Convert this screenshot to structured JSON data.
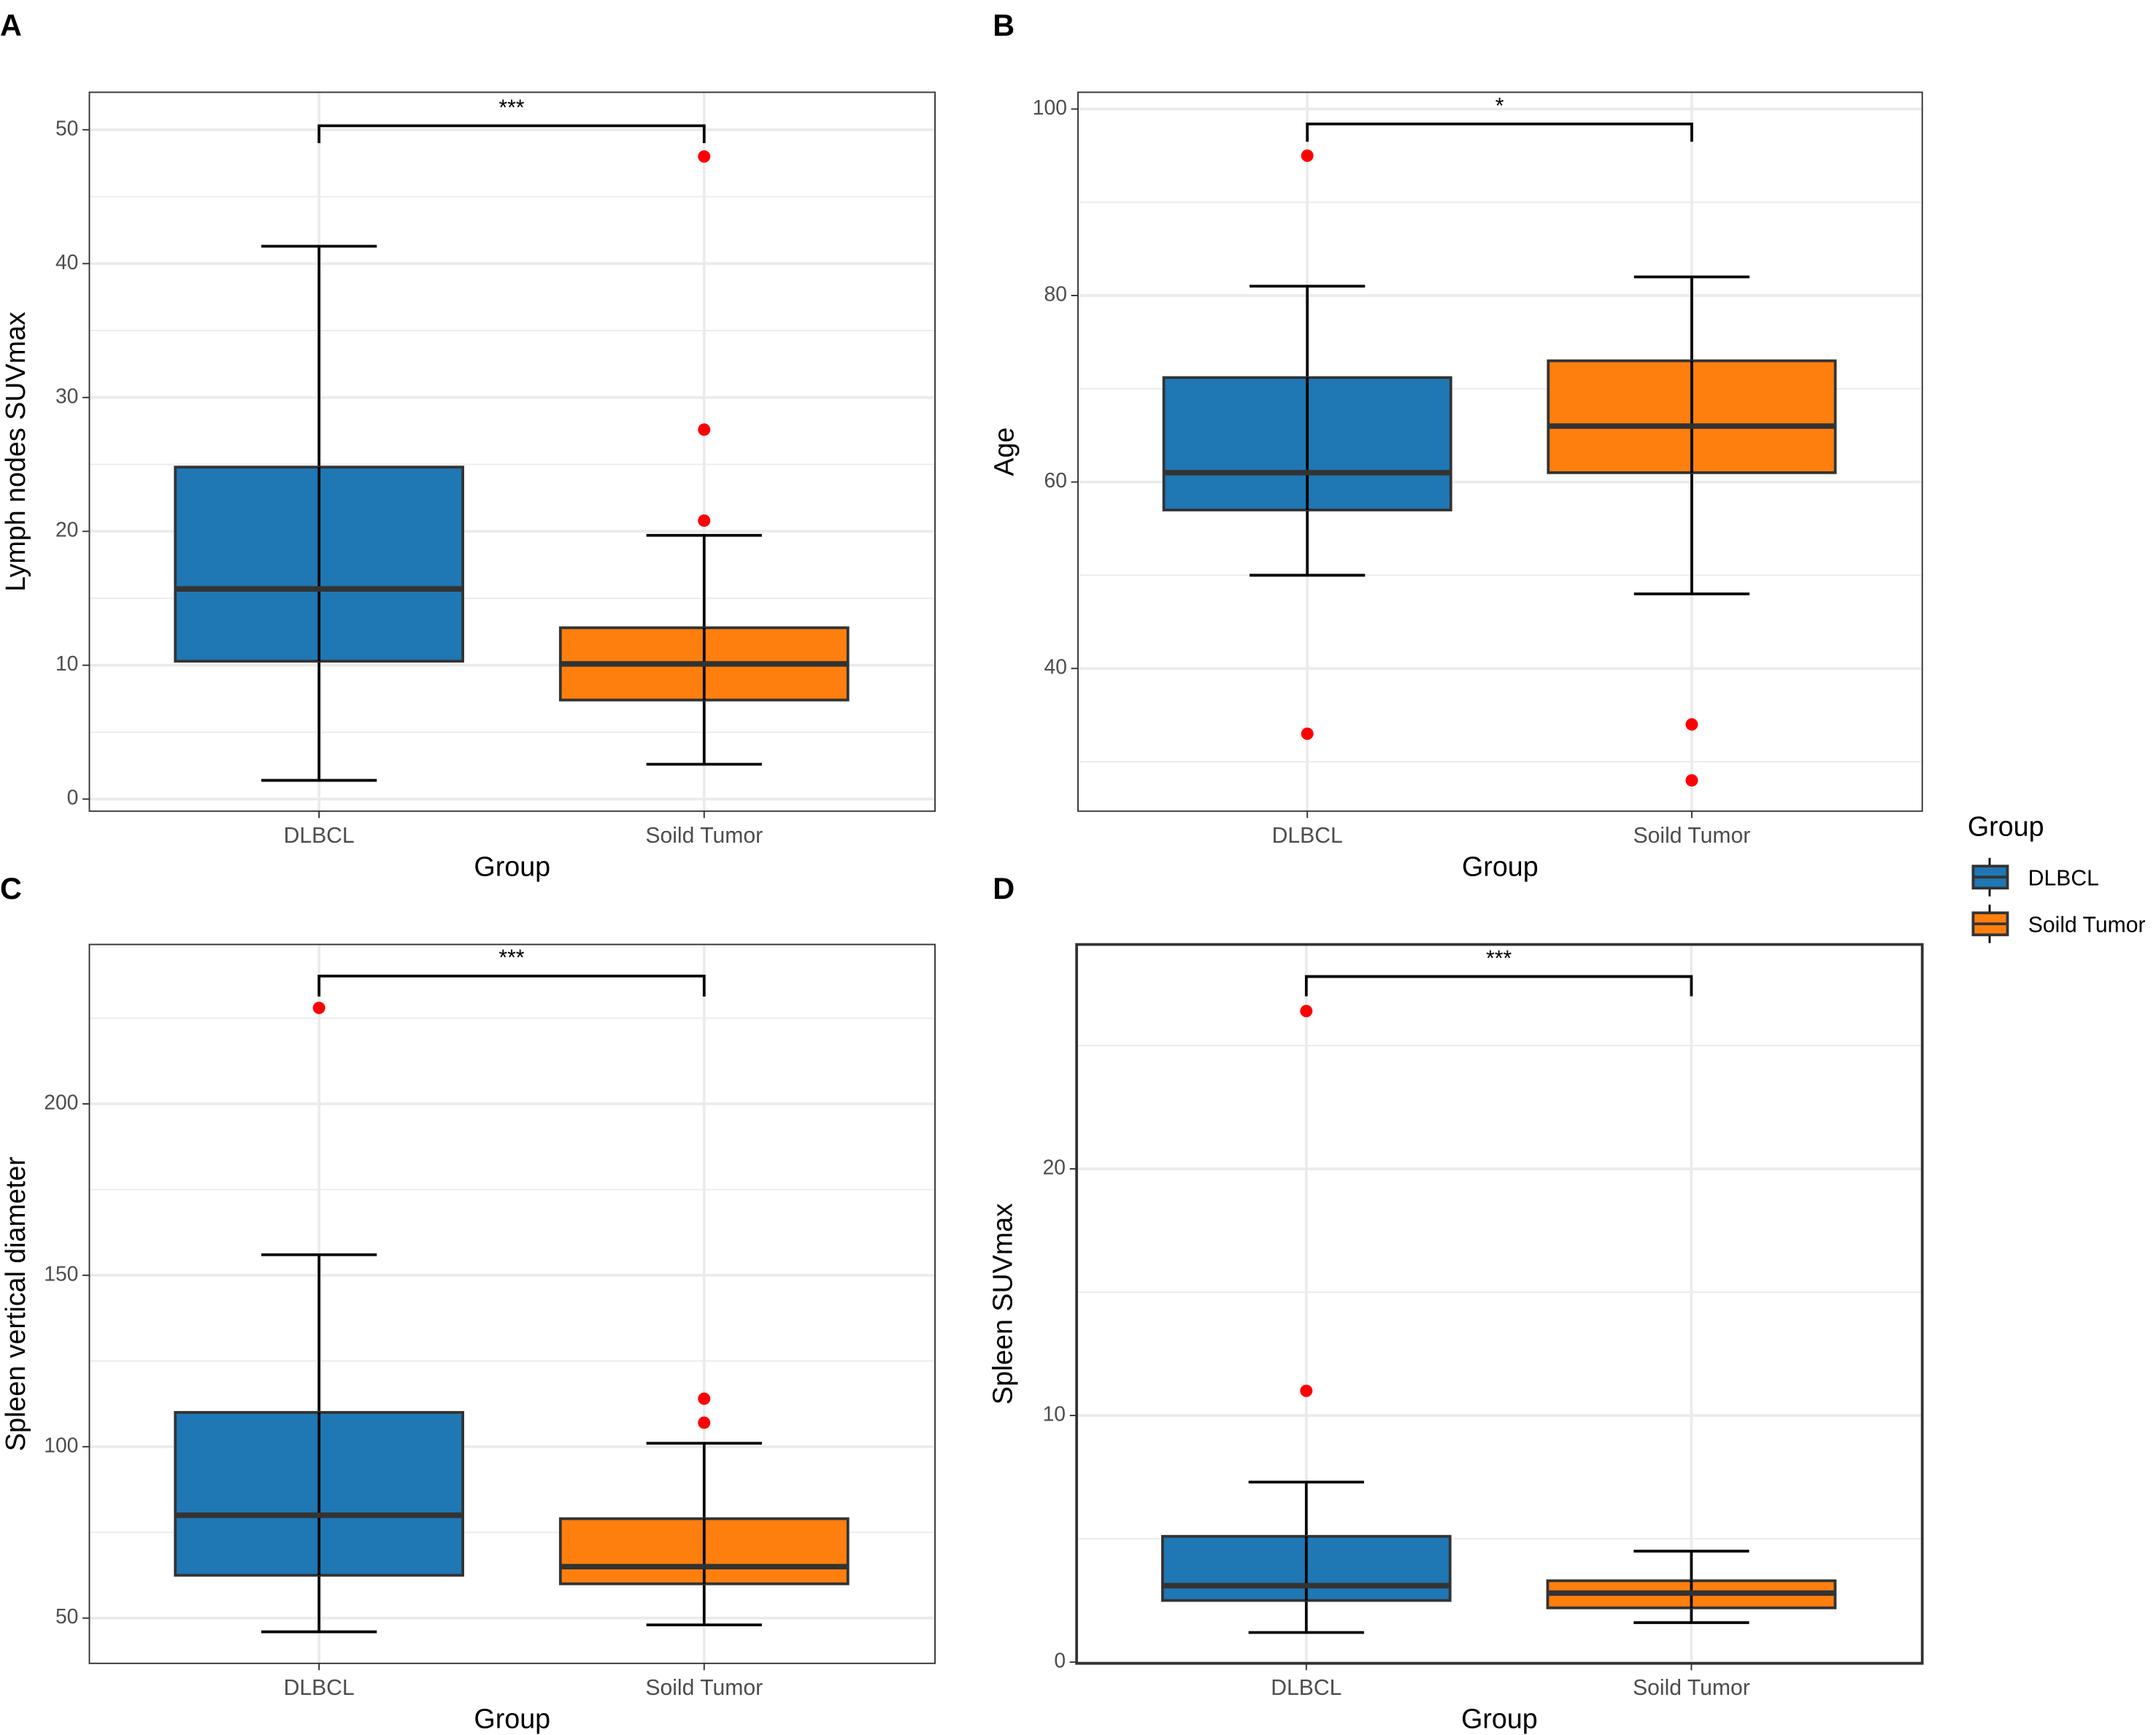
{
  "colors": {
    "DLBCL": "#1f77b4",
    "Soild Tumor": "#ff7f0e",
    "outlier": "#ff0000",
    "box_line": "#333333",
    "grid": "#ebebeb"
  },
  "legend": {
    "title": "Group",
    "entries": [
      "DLBCL",
      "Soild Tumor"
    ],
    "placement": "right"
  },
  "chart_data": [
    {
      "panel": "A",
      "type": "box",
      "xlabel": "Group",
      "ylabel": "Lymph nodes SUVmax",
      "categories": [
        "DLBCL",
        "Soild Tumor"
      ],
      "ylim": [
        -0.9,
        52.8
      ],
      "yticks": [
        0,
        10,
        20,
        30,
        40,
        50
      ],
      "grid": true,
      "boxes": [
        {
          "name": "DLBCL",
          "whisker_low": 1.4,
          "q1": 10.3,
          "median": 15.7,
          "q3": 24.8,
          "whisker_high": 41.3,
          "outliers": []
        },
        {
          "name": "Soild Tumor",
          "whisker_low": 2.6,
          "q1": 7.4,
          "median": 10.1,
          "q3": 12.8,
          "whisker_high": 19.7,
          "outliers": [
            48,
            27.6,
            20.8
          ]
        }
      ],
      "significance": {
        "label": "***",
        "y": 50.3,
        "tip": 49.0
      }
    },
    {
      "panel": "B",
      "type": "box",
      "xlabel": "Group",
      "ylabel": "Age",
      "categories": [
        "DLBCL",
        "Soild Tumor"
      ],
      "ylim": [
        24.7,
        101.8
      ],
      "yticks": [
        40,
        60,
        80,
        100
      ],
      "grid": true,
      "boxes": [
        {
          "name": "DLBCL",
          "whisker_low": 50,
          "q1": 57,
          "median": 61,
          "q3": 71.2,
          "whisker_high": 81,
          "outliers": [
            95,
            33
          ]
        },
        {
          "name": "Soild Tumor",
          "whisker_low": 48,
          "q1": 61,
          "median": 66,
          "q3": 73,
          "whisker_high": 82,
          "outliers": [
            34,
            28
          ]
        }
      ],
      "significance": {
        "label": "*",
        "y": 98.4,
        "tip": 96.5
      }
    },
    {
      "panel": "C",
      "type": "box",
      "xlabel": "Group",
      "ylabel": "Spleen vertical diameter",
      "categories": [
        "DLBCL",
        "Soild Tumor"
      ],
      "ylim": [
        36.8,
        246.5
      ],
      "yticks": [
        50,
        100,
        150,
        200
      ],
      "grid": true,
      "boxes": [
        {
          "name": "DLBCL",
          "whisker_low": 46,
          "q1": 62.5,
          "median": 80,
          "q3": 110,
          "whisker_high": 156,
          "outliers": [
            228
          ]
        },
        {
          "name": "Soild Tumor",
          "whisker_low": 48,
          "q1": 60,
          "median": 65,
          "q3": 79,
          "whisker_high": 101,
          "outliers": [
            114,
            107
          ]
        }
      ],
      "significance": {
        "label": "***",
        "y": 237.3,
        "tip": 231.3
      }
    },
    {
      "panel": "D",
      "type": "box",
      "xlabel": "Group",
      "ylabel": "Spleen SUVmax",
      "categories": [
        "DLBCL",
        "Soild Tumor"
      ],
      "ylim": [
        -0.05,
        29.1
      ],
      "yticks": [
        0,
        10,
        20
      ],
      "grid": true,
      "boxes": [
        {
          "name": "DLBCL",
          "whisker_low": 1.2,
          "q1": 2.5,
          "median": 3.1,
          "q3": 5.1,
          "whisker_high": 7.3,
          "outliers": [
            26.4,
            11
          ]
        },
        {
          "name": "Soild Tumor",
          "whisker_low": 1.6,
          "q1": 2.2,
          "median": 2.8,
          "q3": 3.3,
          "whisker_high": 4.5,
          "outliers": []
        }
      ],
      "significance": {
        "label": "***",
        "y": 27.8,
        "tip": 27.0
      }
    }
  ]
}
